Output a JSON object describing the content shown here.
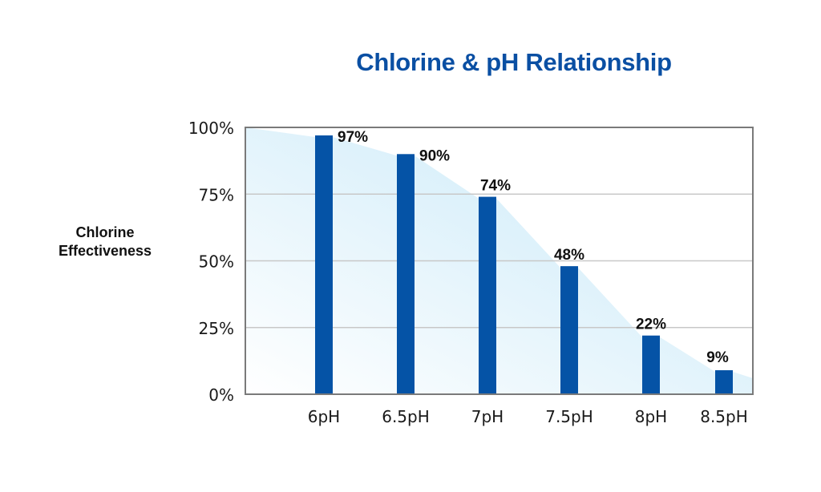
{
  "chart_data": {
    "type": "bar",
    "title": "Chlorine & pH Relationship",
    "xlabel": "",
    "ylabel": "Chlorine Effectiveness",
    "categories": [
      "6pH",
      "6.5pH",
      "7pH",
      "7.5pH",
      "8pH",
      "8.5pH"
    ],
    "values": [
      97,
      90,
      74,
      48,
      22,
      9
    ],
    "value_labels": [
      "97%",
      "90%",
      "74%",
      "48%",
      "22%",
      "9%"
    ],
    "ylim": [
      0,
      100
    ],
    "yticks": [
      "0%",
      "25%",
      "50%",
      "75%",
      "100%"
    ],
    "grid": "horizontal",
    "legend": "none",
    "background_area": "light blue gradient curve following bar tops",
    "colors": {
      "title": "#0a4fa3",
      "bar": "#0553a6",
      "area_fill": "#d4eef9",
      "grid": "#c8c8c8",
      "axis": "#7a7a7a"
    }
  },
  "title": "Chlorine & pH Relationship",
  "ylabel_line1": "Chlorine",
  "ylabel_line2": "Effectiveness"
}
